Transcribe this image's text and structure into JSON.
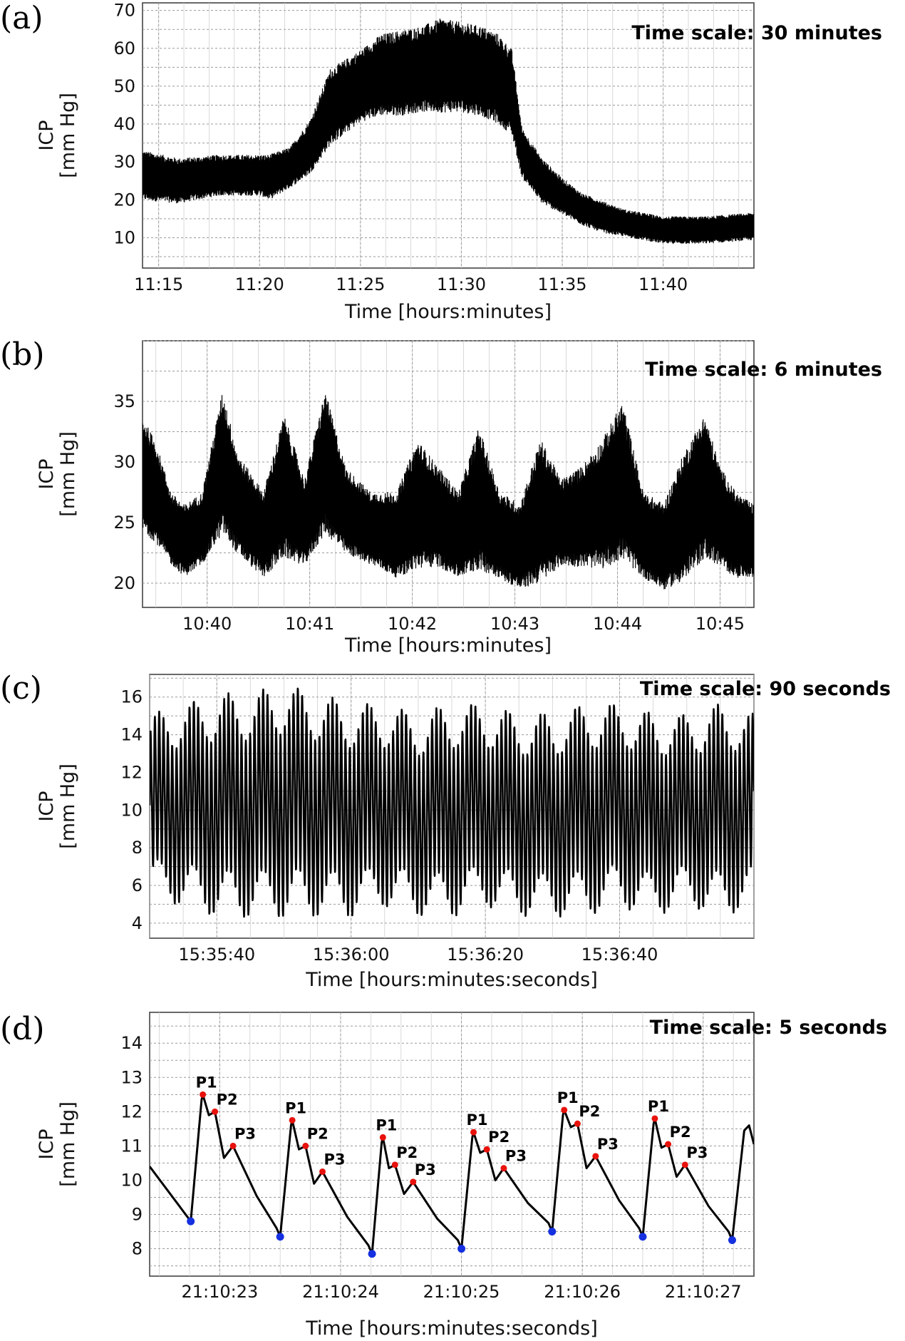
{
  "chart_data": [
    {
      "panel": "(a)",
      "type": "line",
      "scale_note": "Time scale: 30 minutes",
      "xlabel": "Time [hours:minutes]",
      "ylabel": "ICP [mm Hg]",
      "ylabel_lines": [
        "ICP",
        "[mm Hg]"
      ],
      "xlim": [
        674.2,
        704.5
      ],
      "ylim": [
        2,
        72
      ],
      "x_ticks": [
        675,
        680,
        685,
        690,
        695,
        700
      ],
      "x_tick_labels": [
        "11:15",
        "11:20",
        "11:25",
        "11:30",
        "11:35",
        "11:40"
      ],
      "y_ticks": [
        10,
        20,
        30,
        40,
        50,
        60,
        70
      ],
      "y_tick_labels": [
        "10",
        "20",
        "30",
        "40",
        "50",
        "60",
        "70"
      ],
      "grid": true,
      "series": [
        {
          "x": [
            674.2,
            676,
            678,
            680,
            680.5,
            681.5,
            682.5,
            683.5,
            685,
            686,
            687,
            688,
            689,
            690,
            691,
            691.8,
            692.5,
            693,
            694,
            695,
            696,
            697,
            698,
            699,
            700,
            702,
            704.5
          ],
          "upper": [
            32,
            30,
            31,
            31,
            31,
            33,
            40,
            53,
            58,
            62,
            63,
            64,
            66,
            65,
            64,
            62,
            58,
            38,
            30,
            25,
            21,
            19,
            17,
            16,
            15,
            15,
            16
          ],
          "lower": [
            21,
            20,
            22,
            22,
            21,
            24,
            28,
            36,
            42,
            44,
            44,
            45,
            45,
            45,
            44,
            42,
            39,
            27,
            20,
            17,
            14,
            12,
            11,
            10,
            9,
            9,
            10
          ]
        }
      ]
    },
    {
      "panel": "(b)",
      "type": "line",
      "scale_note": "Time scale: 6 minutes",
      "xlabel": "Time [hours:minutes]",
      "ylabel": "ICP [mm Hg]",
      "ylabel_lines": [
        "ICP",
        "[mm Hg]"
      ],
      "xlim": [
        639.37,
        645.33
      ],
      "ylim": [
        18,
        40
      ],
      "x_ticks": [
        640,
        641,
        642,
        643,
        644,
        645
      ],
      "x_tick_labels": [
        "10:40",
        "10:41",
        "10:42",
        "10:43",
        "10:44",
        "10:45"
      ],
      "y_ticks": [
        20,
        25,
        30,
        35
      ],
      "y_tick_labels": [
        "20",
        "25",
        "30",
        "35"
      ],
      "grid": true,
      "series": [
        {
          "x": [
            639.37,
            639.5,
            639.65,
            639.78,
            639.95,
            640.15,
            640.3,
            640.55,
            640.75,
            640.95,
            641.15,
            641.35,
            641.6,
            641.85,
            642.05,
            642.25,
            642.45,
            642.65,
            642.85,
            643.05,
            643.25,
            643.45,
            643.65,
            643.85,
            644.05,
            644.25,
            644.45,
            644.65,
            644.85,
            645.0,
            645.15,
            645.33
          ],
          "upper": [
            33,
            31,
            27,
            26,
            27,
            35,
            30,
            27,
            33,
            28,
            35,
            29,
            27,
            27,
            31,
            29,
            27,
            32,
            27,
            26,
            31,
            28,
            29,
            31,
            34,
            27,
            26,
            30,
            33,
            29,
            27,
            26
          ],
          "lower": [
            25,
            24,
            22,
            21,
            22,
            25,
            23,
            21,
            23,
            22,
            25,
            23,
            22,
            21,
            22,
            22,
            21,
            22,
            21,
            20,
            21,
            22,
            22,
            22,
            23,
            21,
            20,
            21,
            23,
            22,
            21,
            21
          ]
        }
      ]
    },
    {
      "panel": "(c)",
      "type": "line",
      "scale_note": "Time scale: 90 seconds",
      "xlabel": "Time [hours:minutes:seconds]",
      "ylabel": "ICP [mm Hg]",
      "ylabel_lines": [
        "ICP",
        "[mm Hg]"
      ],
      "xlim": [
        0,
        90
      ],
      "ylim": [
        3.2,
        17.2
      ],
      "x_ticks": [
        10,
        30,
        50,
        70
      ],
      "x_tick_labels": [
        "15:35:40",
        "15:36:00",
        "15:36:20",
        "15:36:40"
      ],
      "y_ticks": [
        4,
        6,
        8,
        10,
        12,
        14,
        16
      ],
      "y_tick_labels": [
        "4",
        "6",
        "8",
        "10",
        "12",
        "14",
        "16"
      ],
      "grid": true,
      "series": [
        {
          "pulse_rate_per_s": 1.55,
          "x": [
            0,
            5,
            10,
            15,
            20,
            25,
            30,
            35,
            40,
            45,
            50,
            55,
            60,
            65,
            70,
            75,
            80,
            85,
            90
          ],
          "peak": [
            14.5,
            15,
            15.5,
            15.5,
            16,
            15.5,
            15,
            15,
            14.5,
            15,
            15,
            14.5,
            14.5,
            15,
            15,
            14.5,
            14.5,
            15,
            14.5
          ],
          "trough": [
            6,
            5.5,
            5,
            5,
            5,
            5,
            5,
            5.5,
            5,
            5,
            5.5,
            5,
            5,
            5,
            5.5,
            5,
            5.5,
            5,
            5.5
          ]
        }
      ]
    },
    {
      "panel": "(d)",
      "type": "line",
      "scale_note": "Time scale: 5 seconds",
      "xlabel": "Time [hours:minutes:seconds]",
      "ylabel": "ICP [mm Hg]",
      "ylabel_lines": [
        "ICP",
        "[mm Hg]"
      ],
      "xlim": [
        0,
        5.0
      ],
      "ylim": [
        7.2,
        14.9
      ],
      "x_ticks": [
        0.58,
        1.58,
        2.58,
        3.58,
        4.58
      ],
      "x_tick_labels": [
        "21:10:23",
        "21:10:24",
        "21:10:25",
        "21:10:26",
        "21:10:27"
      ],
      "y_ticks": [
        8,
        9,
        10,
        11,
        12,
        13,
        14
      ],
      "y_tick_labels": [
        "8",
        "9",
        "10",
        "11",
        "12",
        "13",
        "14"
      ],
      "grid": true,
      "minima": [
        {
          "x": 0.34,
          "y": 8.8
        },
        {
          "x": 1.08,
          "y": 8.35
        },
        {
          "x": 1.84,
          "y": 7.85
        },
        {
          "x": 2.58,
          "y": 8.0
        },
        {
          "x": 3.33,
          "y": 8.5
        },
        {
          "x": 4.08,
          "y": 8.35
        },
        {
          "x": 4.82,
          "y": 8.25
        }
      ],
      "pulses": [
        {
          "p1": {
            "x": 0.44,
            "y": 12.5
          },
          "p2": {
            "x": 0.54,
            "y": 12.0
          },
          "p3": {
            "x": 0.69,
            "y": 11.0
          }
        },
        {
          "p1": {
            "x": 1.18,
            "y": 11.75
          },
          "p2": {
            "x": 1.29,
            "y": 11.0
          },
          "p3": {
            "x": 1.43,
            "y": 10.25
          }
        },
        {
          "p1": {
            "x": 1.93,
            "y": 11.25
          },
          "p2": {
            "x": 2.03,
            "y": 10.45
          },
          "p3": {
            "x": 2.18,
            "y": 9.95
          }
        },
        {
          "p1": {
            "x": 2.68,
            "y": 11.4
          },
          "p2": {
            "x": 2.79,
            "y": 10.9
          },
          "p3": {
            "x": 2.93,
            "y": 10.35
          }
        },
        {
          "p1": {
            "x": 3.43,
            "y": 12.05
          },
          "p2": {
            "x": 3.54,
            "y": 11.65
          },
          "p3": {
            "x": 3.69,
            "y": 10.7
          }
        },
        {
          "p1": {
            "x": 4.18,
            "y": 11.8
          },
          "p2": {
            "x": 4.29,
            "y": 11.05
          },
          "p3": {
            "x": 4.43,
            "y": 10.45
          }
        }
      ],
      "pulse_labels": [
        "P1",
        "P2",
        "P3"
      ],
      "end": {
        "x": 5.0,
        "y": 11.05
      },
      "start": {
        "x": 0.0,
        "y": 10.4
      },
      "marker_colors": {
        "peaks": "#e8120c",
        "minima": "#1430e0"
      }
    }
  ]
}
